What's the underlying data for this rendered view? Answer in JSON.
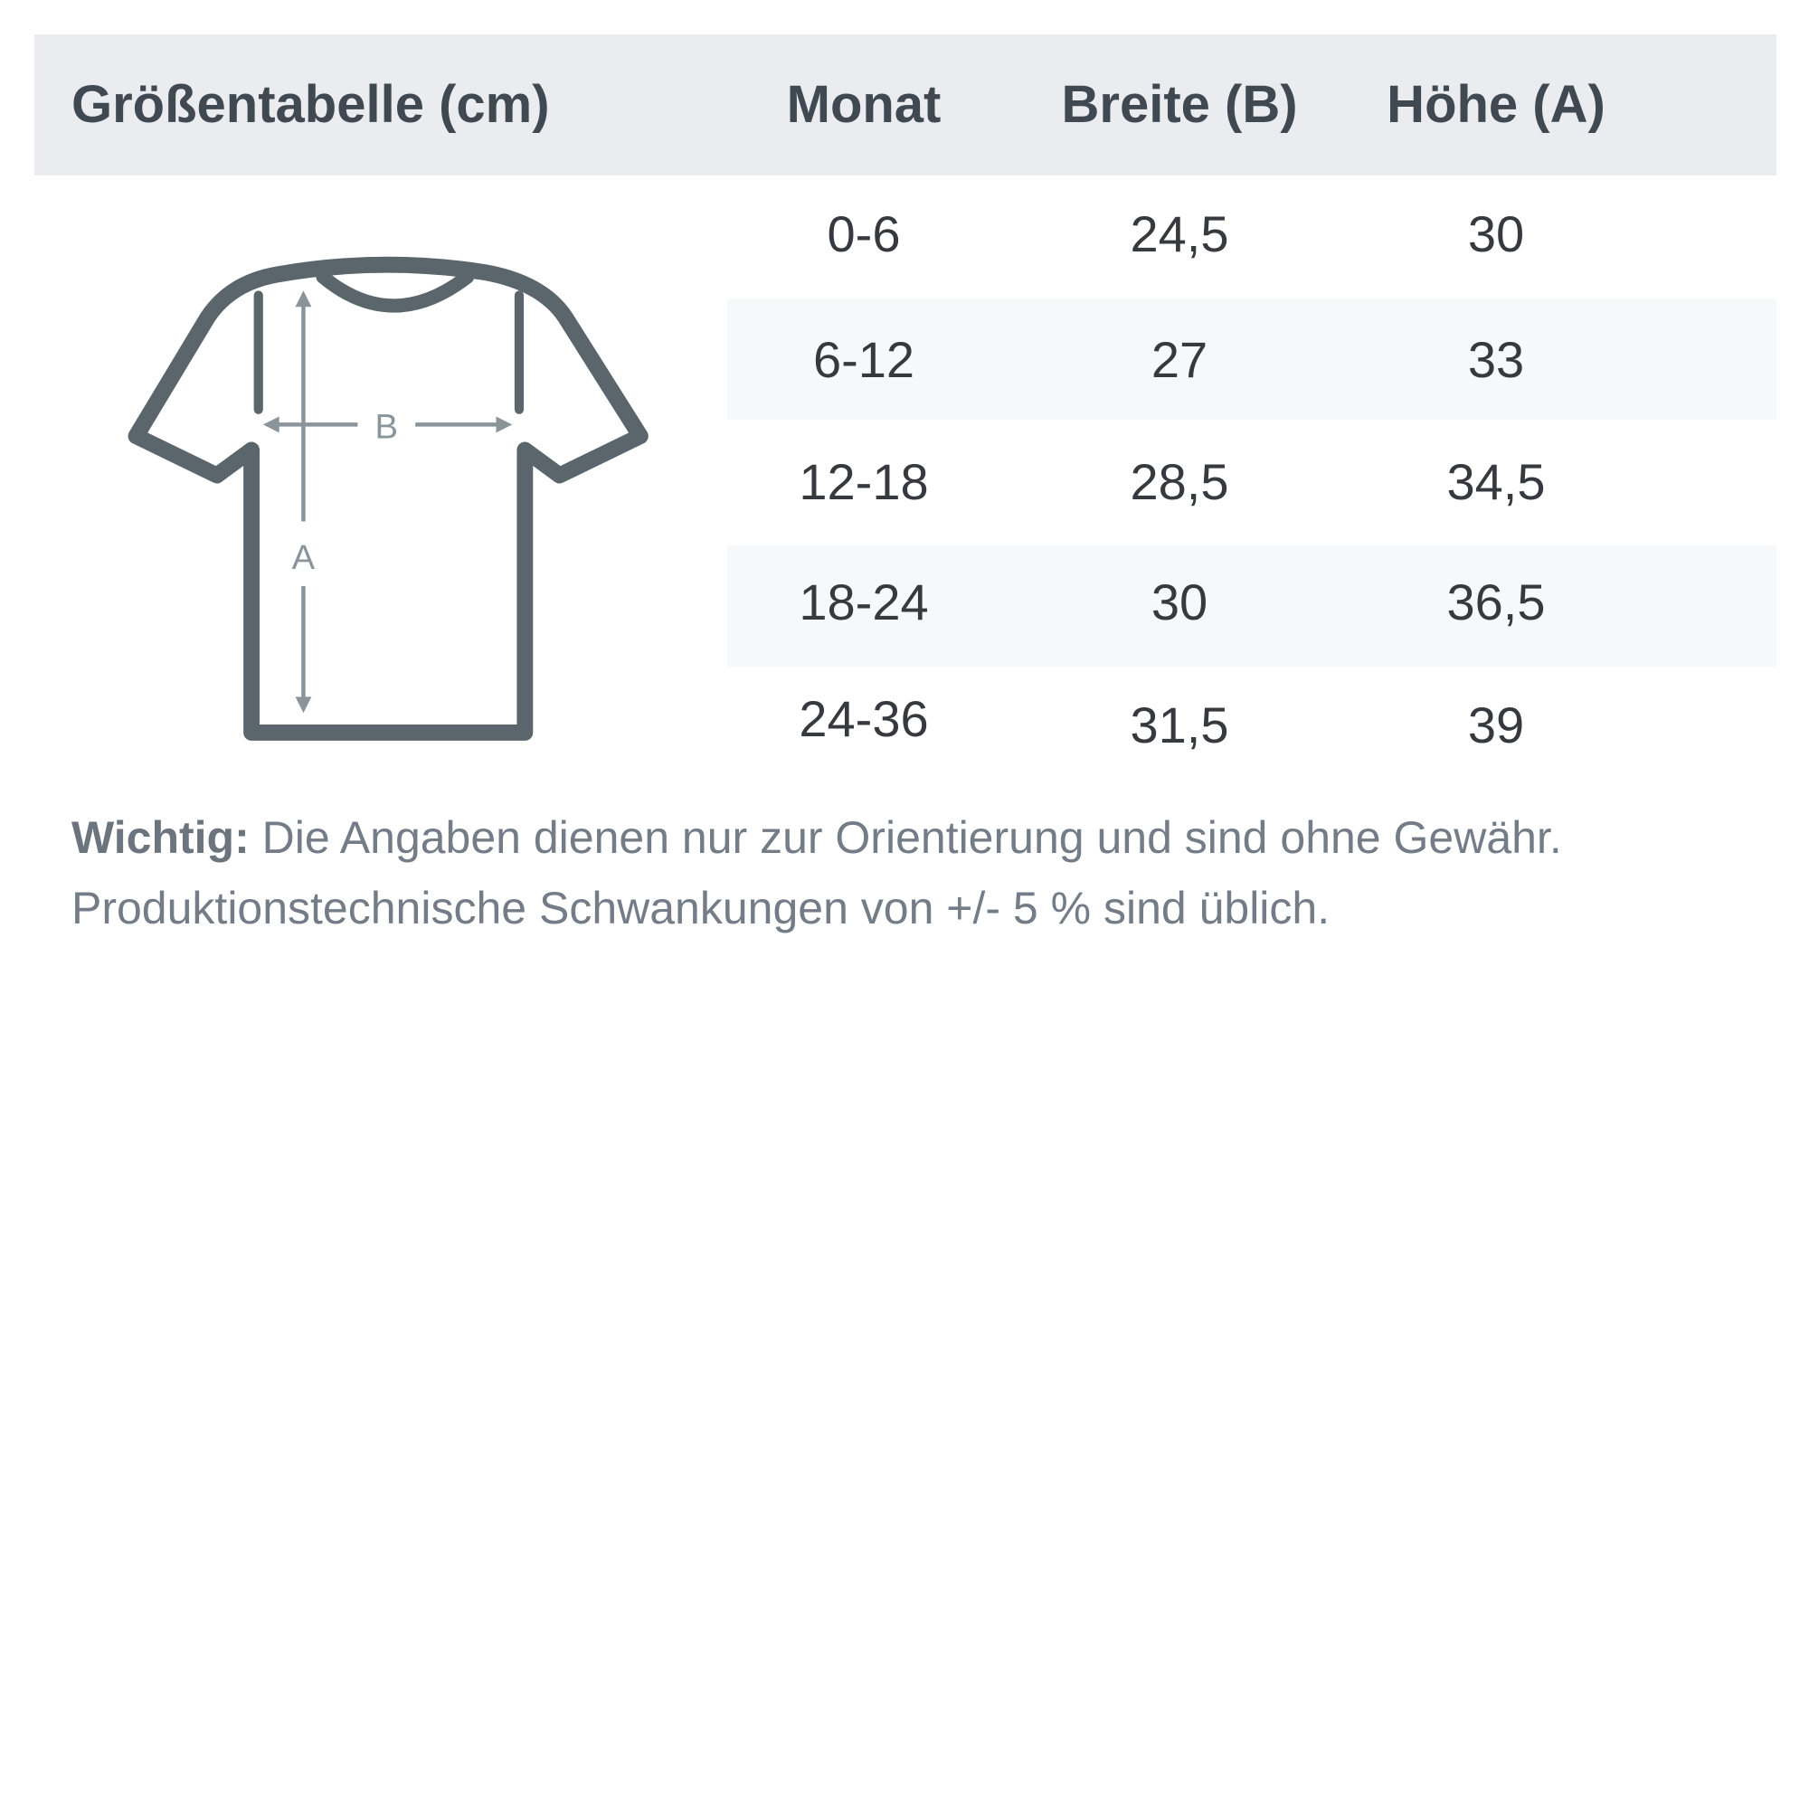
{
  "header": {
    "title": "Größentabelle (cm)",
    "columns": [
      "Monat",
      "Breite (B)",
      "Höhe (A)"
    ]
  },
  "diagram": {
    "label_width": "B",
    "label_height": "A",
    "icon": "t-shirt-measurement-icon"
  },
  "rows": [
    {
      "month": "0-6",
      "width": "24,5",
      "height": "30"
    },
    {
      "month": "6-12",
      "width": "27",
      "height": "33"
    },
    {
      "month": "12-18",
      "width": "28,5",
      "height": "34,5"
    },
    {
      "month": "18-24",
      "width": "30",
      "height": "36,5"
    },
    {
      "month": "24-36",
      "width": "31,5",
      "height": "39"
    }
  ],
  "note": {
    "bold": "Wichtig:",
    "line1": " Die Angaben dienen nur zur Orientierung und sind ohne Gewähr.",
    "line2": "Produktionstechnische Schwankungen von +/- 5 % sind üblich."
  },
  "colors": {
    "header_bg": "#eaecef",
    "stripe": "#f7f8f9",
    "shirt": "#5a666c",
    "arrows": "#8a949b"
  }
}
